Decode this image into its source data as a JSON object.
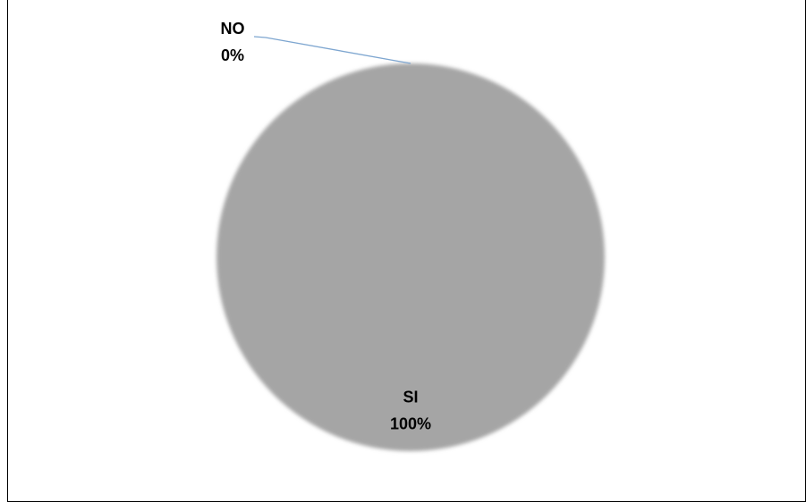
{
  "chart_data": {
    "type": "pie",
    "categories": [
      "SI",
      "NO"
    ],
    "values": [
      100,
      0
    ],
    "data_labels": [
      {
        "category": "SI",
        "percent": "100%"
      },
      {
        "category": "NO",
        "percent": "0%"
      }
    ],
    "colors": {
      "SI": "#a5a5a5",
      "leader_line": "#7ea6d0"
    },
    "legend": "none"
  }
}
